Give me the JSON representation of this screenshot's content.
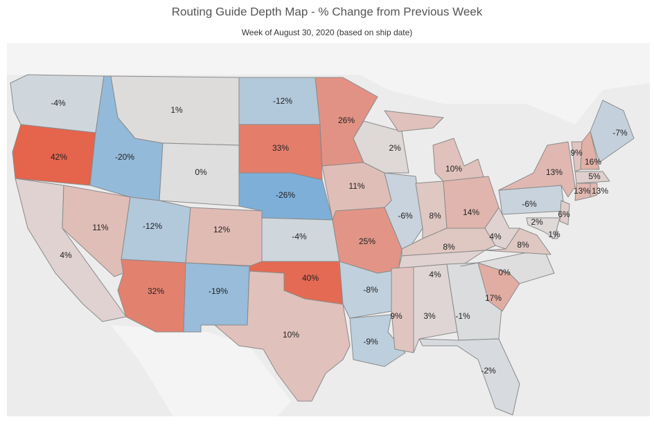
{
  "chart_data": {
    "type": "choropleth",
    "title": "Routing Guide Depth Map - % Change from Previous Week",
    "subtitle": "Week of August 30, 2020 (based on ship date)",
    "values": [
      -4,
      42,
      4,
      11,
      -20,
      1,
      0,
      -12,
      12,
      32,
      -19,
      -12,
      33,
      -26,
      -4,
      40,
      10,
      26,
      11,
      25,
      -8,
      -9,
      2,
      -6,
      10,
      8,
      14,
      8,
      4,
      9,
      3,
      -1,
      -2,
      17,
      0,
      8,
      4,
      -6,
      13,
      9,
      16,
      -7,
      5,
      13,
      13,
      6,
      1,
      2
    ],
    "value_labels": [
      "-4%",
      "42%",
      "4%",
      "11%",
      "-20%",
      "1%",
      "0%",
      "-12%",
      "12%",
      "32%",
      "-19%",
      "-12%",
      "33%",
      "-26%",
      "-4%",
      "40%",
      "10%",
      "26%",
      "11%",
      "25%",
      "-8%",
      "-9%",
      "2%",
      "-6%",
      "10%",
      "8%",
      "14%",
      "8%",
      "4%",
      "9%",
      "3%",
      "-1%",
      "-2%",
      "17%",
      "0%",
      "8%",
      "4%",
      "-6%",
      "13%",
      "9%",
      "16%",
      "-7%",
      "5%",
      "13%",
      "13%",
      "6%",
      "1%",
      "2%"
    ],
    "colors": {
      "negative": "#7eafd8",
      "neutral": "#dedede",
      "positive": "#e5644c"
    }
  }
}
